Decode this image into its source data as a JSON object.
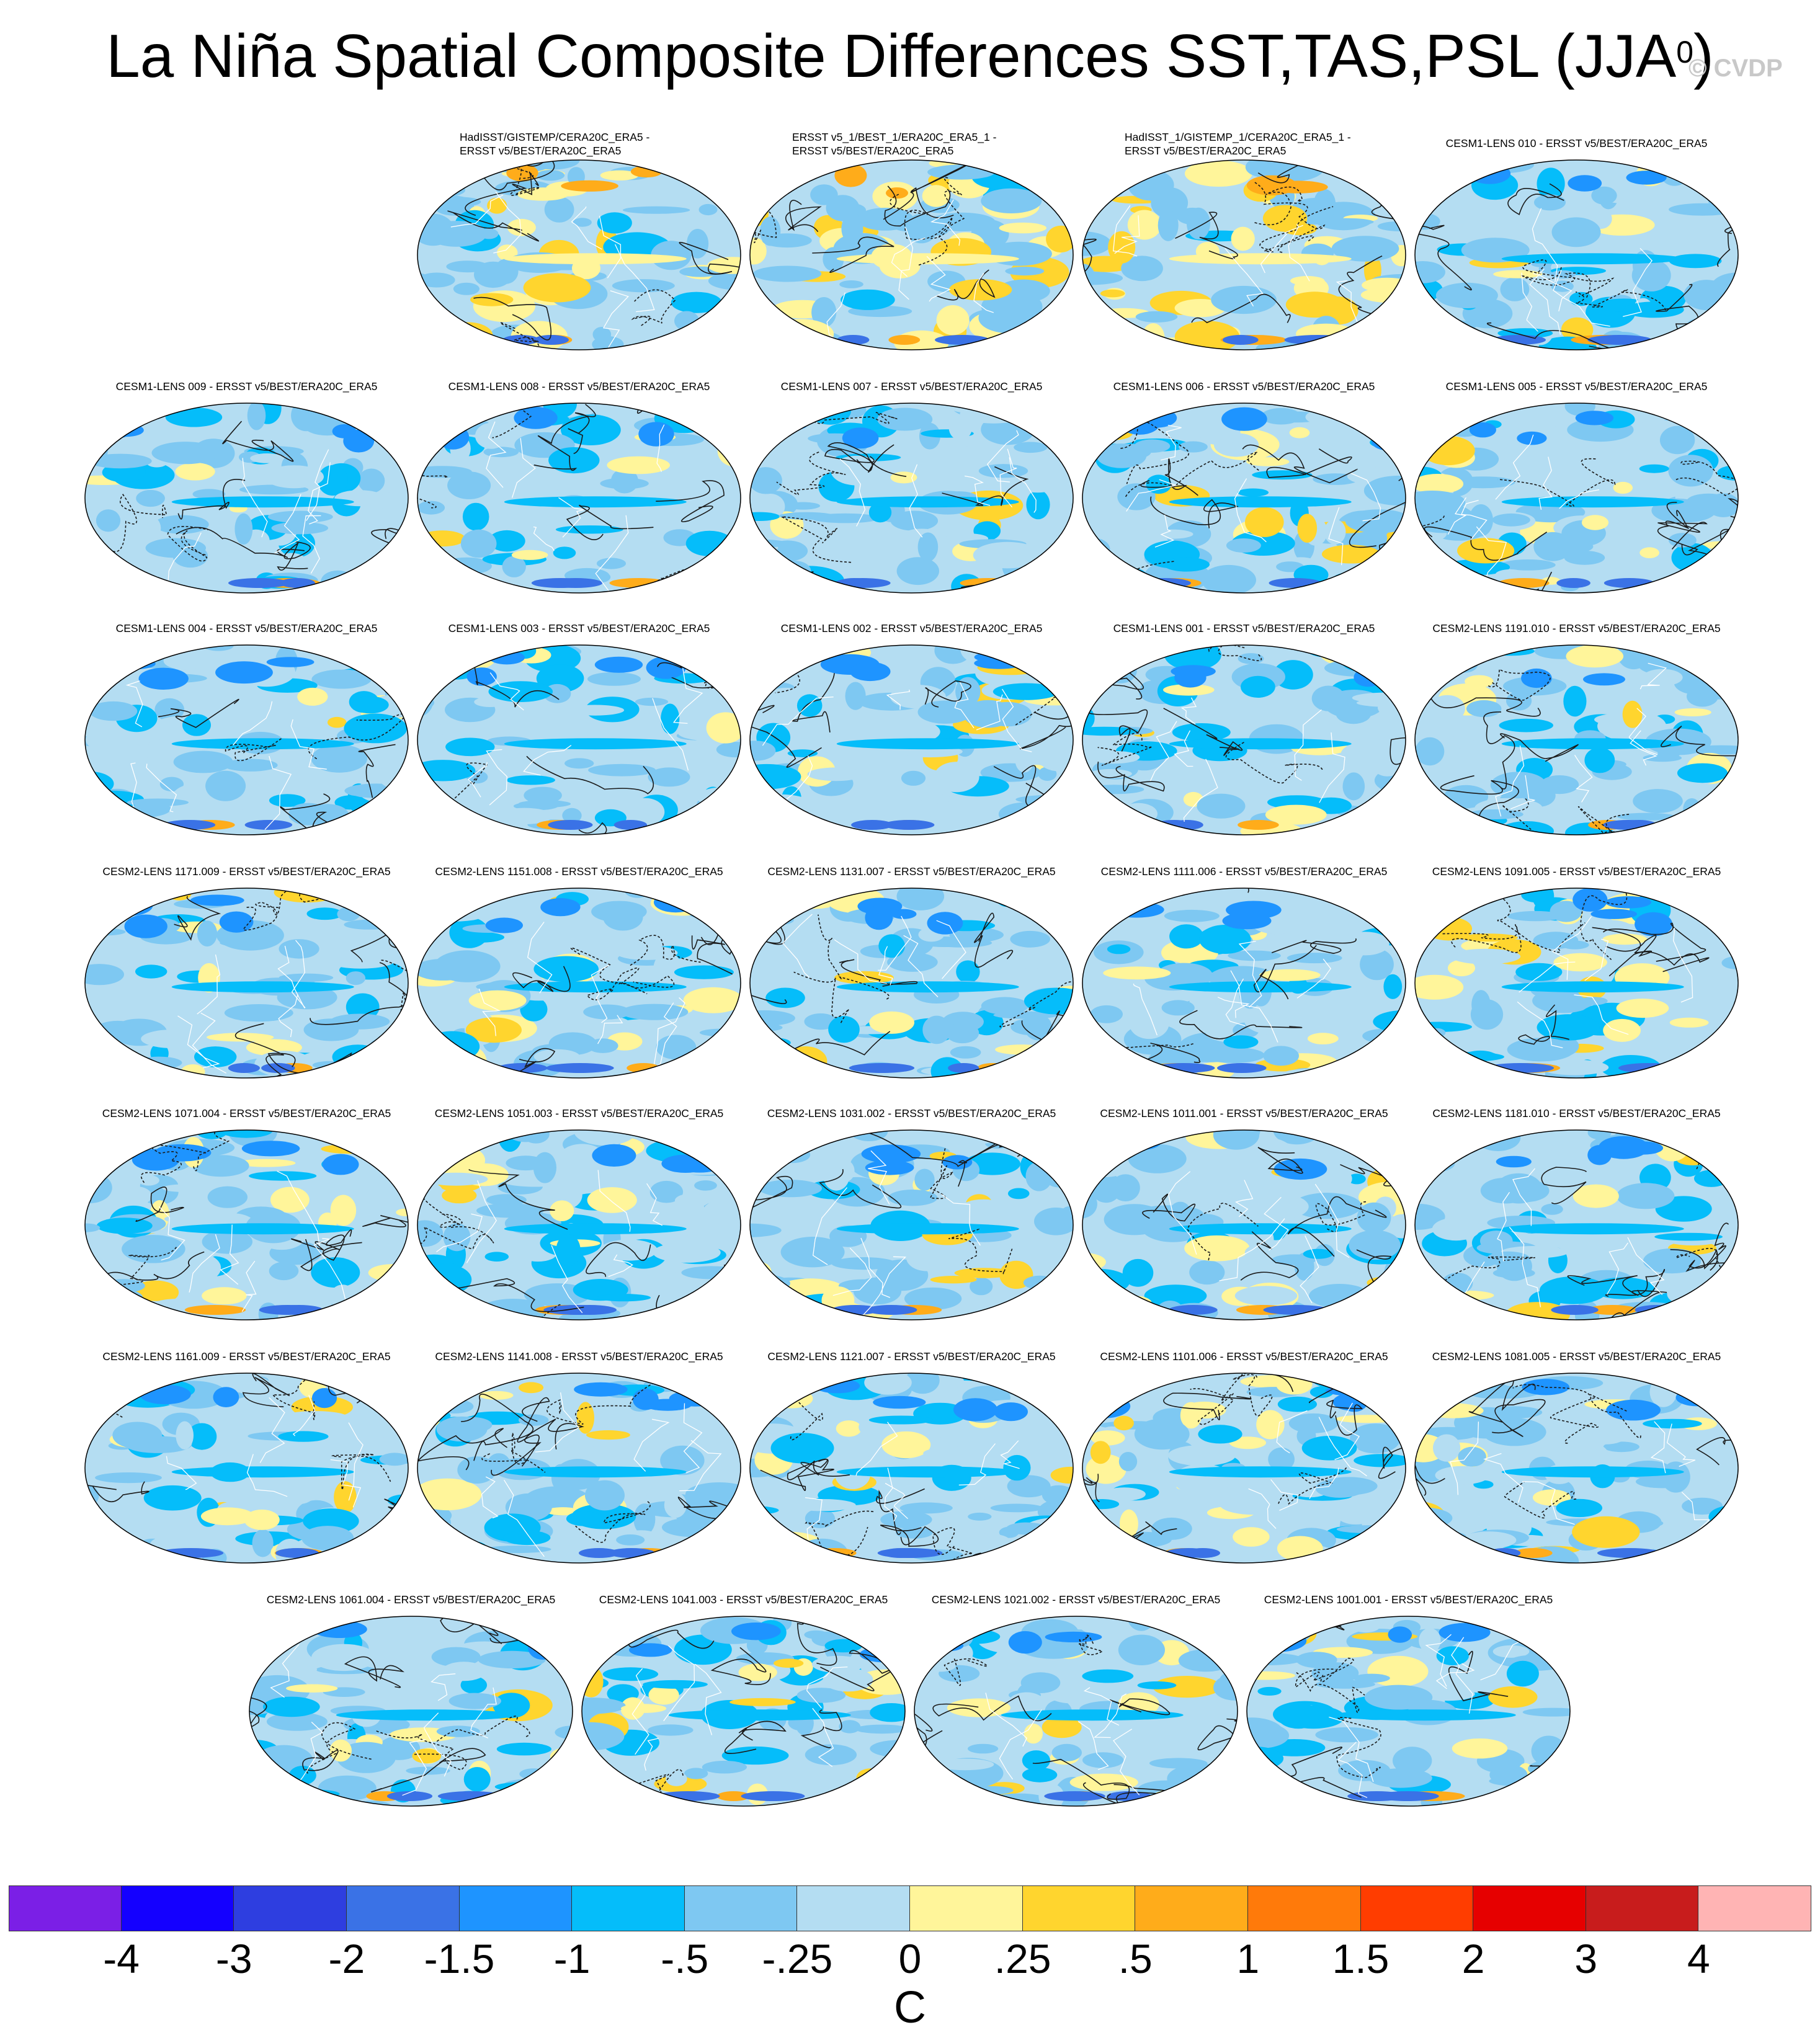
{
  "title": "La Niña Spatial Composite Differences SST,TAS,PSL (JJA",
  "title_sup": "0",
  "title_close": ")",
  "credit": "© CVDP",
  "chart_data": {
    "type": "heatmap",
    "title": "La Niña Spatial Composite Differences SST,TAS,PSL (JJA0)",
    "units": "C",
    "levels": [
      "-4",
      "-3",
      "-2",
      "-1.5",
      "-1",
      "-.5",
      "-.25",
      "0",
      ".25",
      ".5",
      "1",
      "1.5",
      "2",
      "3",
      "4"
    ],
    "colors": [
      "#7b1fe6",
      "#1400ff",
      "#2e3ee0",
      "#3a72e6",
      "#1e94ff",
      "#05bdfa",
      "#7ec8f2",
      "#b4ddf2",
      "#fff59a",
      "#ffd52e",
      "#ffac1a",
      "#ff7a0a",
      "#ff3d00",
      "#e60000",
      "#c81c1c",
      "#ffb4b4"
    ],
    "panels": [
      {
        "label": "HadISST/GISTEMP/CERA20C_ERA5 -\nERSST v5/BEST/ERA20C_ERA5",
        "two": true,
        "warm": 0.4
      },
      {
        "label": "ERSST v5_1/BEST_1/ERA20C_ERA5_1 -\nERSST v5/BEST/ERA20C_ERA5",
        "two": true,
        "warm": 0.55
      },
      {
        "label": "HadISST_1/GISTEMP_1/CERA20C_ERA5_1 -\nERSST v5/BEST/ERA20C_ERA5",
        "two": true,
        "warm": 0.55
      },
      {
        "label": "CESM1-LENS 010 - ERSST v5/BEST/ERA20C_ERA5",
        "warm": 0.08
      },
      {
        "label": "CESM1-LENS 009 - ERSST v5/BEST/ERA20C_ERA5",
        "warm": 0.1
      },
      {
        "label": "CESM1-LENS 008 - ERSST v5/BEST/ERA20C_ERA5",
        "warm": 0.1
      },
      {
        "label": "CESM1-LENS 007 - ERSST v5/BEST/ERA20C_ERA5",
        "warm": 0.1
      },
      {
        "label": "CESM1-LENS 006 - ERSST v5/BEST/ERA20C_ERA5",
        "warm": 0.12
      },
      {
        "label": "CESM1-LENS 005 - ERSST v5/BEST/ERA20C_ERA5",
        "warm": 0.1
      },
      {
        "label": "CESM1-LENS 004 - ERSST v5/BEST/ERA20C_ERA5",
        "warm": 0.06
      },
      {
        "label": "CESM1-LENS 003 - ERSST v5/BEST/ERA20C_ERA5",
        "warm": 0.07
      },
      {
        "label": "CESM1-LENS 002 - ERSST v5/BEST/ERA20C_ERA5",
        "warm": 0.07
      },
      {
        "label": "CESM1-LENS 001 - ERSST v5/BEST/ERA20C_ERA5",
        "warm": 0.09
      },
      {
        "label": "CESM2-LENS 1191.010 - ERSST v5/BEST/ERA20C_ERA5",
        "warm": 0.07
      },
      {
        "label": "CESM2-LENS 1171.009 - ERSST v5/BEST/ERA20C_ERA5",
        "warm": 0.14
      },
      {
        "label": "CESM2-LENS 1151.008 - ERSST v5/BEST/ERA20C_ERA5",
        "warm": 0.15
      },
      {
        "label": "CESM2-LENS 1131.007 - ERSST v5/BEST/ERA20C_ERA5",
        "warm": 0.12
      },
      {
        "label": "CESM2-LENS 1111.006 - ERSST v5/BEST/ERA20C_ERA5",
        "warm": 0.15
      },
      {
        "label": "CESM2-LENS 1091.005 - ERSST v5/BEST/ERA20C_ERA5",
        "warm": 0.18
      },
      {
        "label": "CESM2-LENS 1071.004 - ERSST v5/BEST/ERA20C_ERA5",
        "warm": 0.14
      },
      {
        "label": "CESM2-LENS 1051.003 - ERSST v5/BEST/ERA20C_ERA5",
        "warm": 0.1
      },
      {
        "label": "CESM2-LENS 1031.002 - ERSST v5/BEST/ERA20C_ERA5",
        "warm": 0.12
      },
      {
        "label": "CESM2-LENS 1011.001 - ERSST v5/BEST/ERA20C_ERA5",
        "warm": 0.12
      },
      {
        "label": "CESM2-LENS 1181.010 - ERSST v5/BEST/ERA20C_ERA5",
        "warm": 0.14
      },
      {
        "label": "CESM2-LENS 1161.009 - ERSST v5/BEST/ERA20C_ERA5",
        "warm": 0.16
      },
      {
        "label": "CESM2-LENS 1141.008 - ERSST v5/BEST/ERA20C_ERA5",
        "warm": 0.1
      },
      {
        "label": "CESM2-LENS 1121.007 - ERSST v5/BEST/ERA20C_ERA5",
        "warm": 0.18
      },
      {
        "label": "CESM2-LENS 1101.006 - ERSST v5/BEST/ERA20C_ERA5",
        "warm": 0.2
      },
      {
        "label": "CESM2-LENS 1081.005 - ERSST v5/BEST/ERA20C_ERA5",
        "warm": 0.12
      },
      {
        "label": "CESM2-LENS 1061.004 - ERSST v5/BEST/ERA20C_ERA5",
        "warm": 0.14
      },
      {
        "label": "CESM2-LENS 1041.003 - ERSST v5/BEST/ERA20C_ERA5",
        "warm": 0.26
      },
      {
        "label": "CESM2-LENS 1021.002 - ERSST v5/BEST/ERA20C_ERA5",
        "warm": 0.12
      },
      {
        "label": "CESM2-LENS 1001.001 - ERSST v5/BEST/ERA20C_ERA5",
        "warm": 0.14
      }
    ]
  }
}
